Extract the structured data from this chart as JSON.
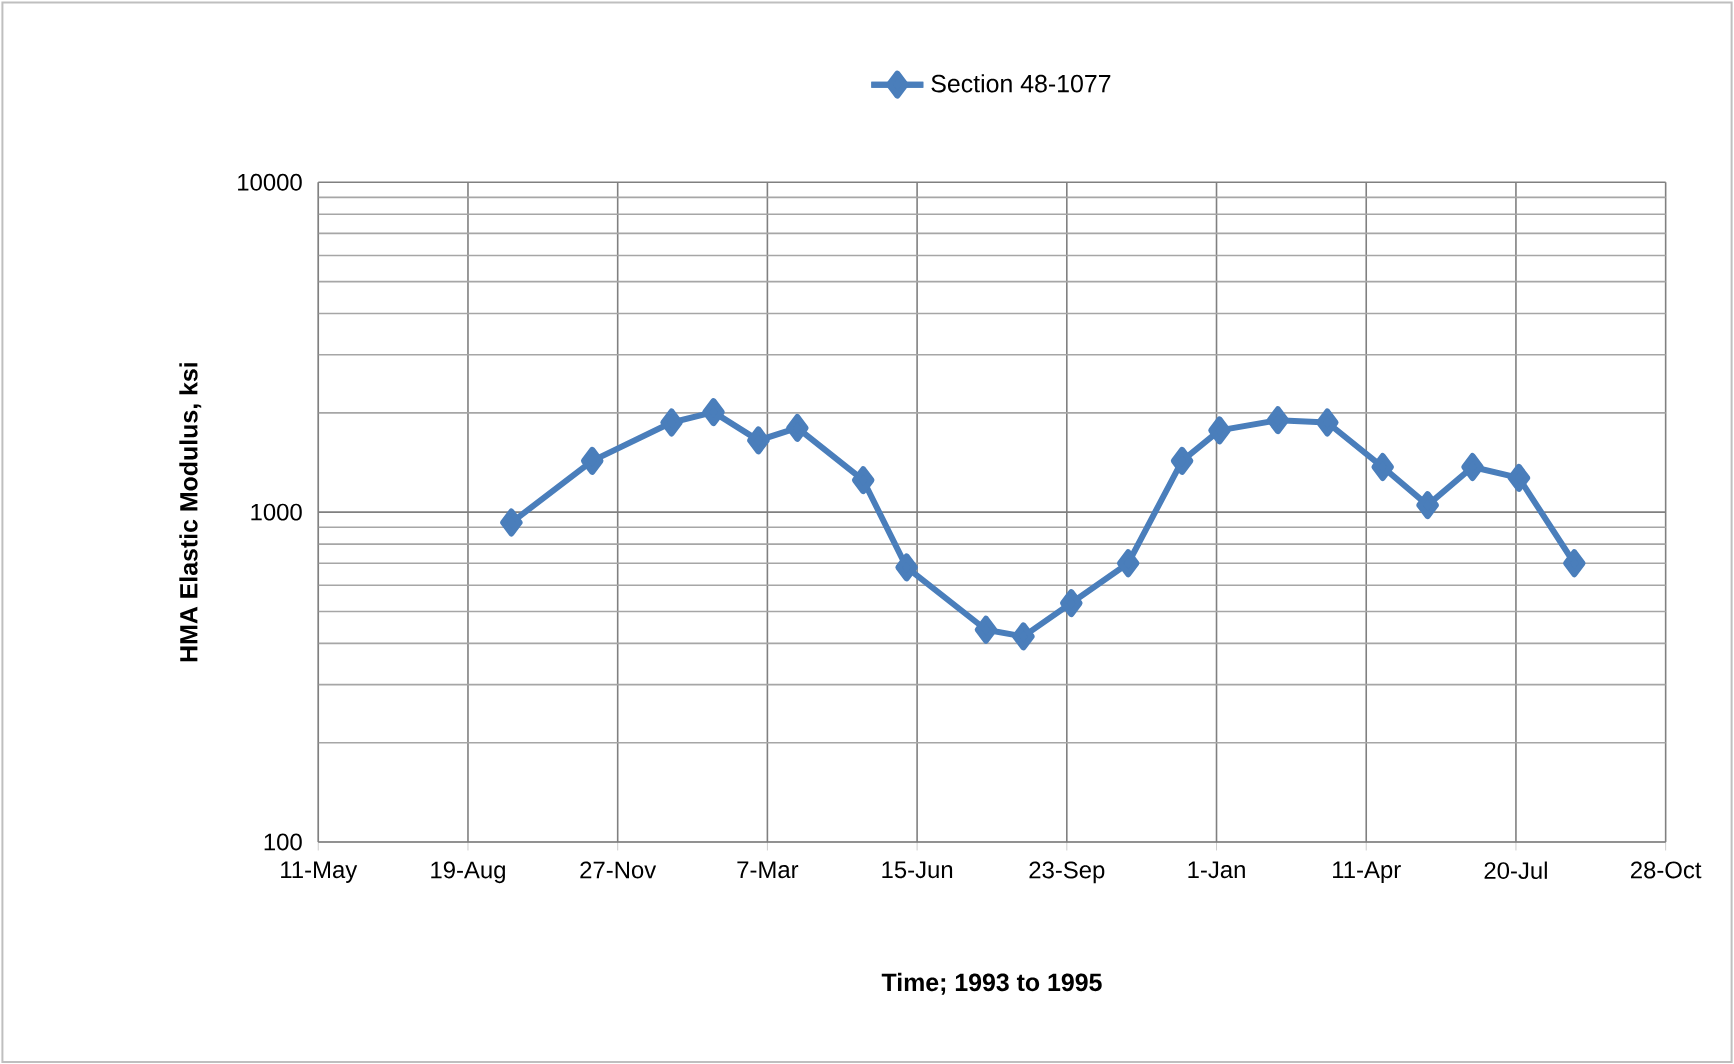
{
  "chart_data": {
    "type": "line",
    "xlabel": "Time; 1993 to 1995",
    "ylabel": "HMA Elastic Modulus, ksi",
    "x": [
      "1993-09-17",
      "1993-11-10",
      "1994-01-02",
      "1994-01-30",
      "1994-03-01",
      "1994-03-27",
      "1994-05-10",
      "1994-06-08",
      "1994-07-31",
      "1994-08-25",
      "1994-09-26",
      "1994-11-03",
      "1994-12-09",
      "1995-01-03",
      "1995-02-11",
      "1995-03-16",
      "1995-04-22",
      "1995-05-22",
      "1995-06-21",
      "1995-07-22",
      "1995-08-28"
    ],
    "series": [
      {
        "name": "Section 48-1077",
        "color": "#4a7ebb",
        "values": [
          930,
          1430,
          1870,
          2010,
          1650,
          1800,
          1250,
          680,
          440,
          420,
          530,
          700,
          1430,
          1770,
          1900,
          1870,
          1370,
          1050,
          1370,
          1270,
          700
        ]
      }
    ],
    "xlim": [
      "1993-05-11",
      "1995-10-28"
    ],
    "xticks": [
      {
        "value": "1993-05-11",
        "label": "11-May"
      },
      {
        "value": "1993-08-19",
        "label": "19-Aug"
      },
      {
        "value": "1993-11-27",
        "label": "27-Nov"
      },
      {
        "value": "1994-03-07",
        "label": "7-Mar"
      },
      {
        "value": "1994-06-15",
        "label": "15-Jun"
      },
      {
        "value": "1994-09-23",
        "label": "23-Sep"
      },
      {
        "value": "1995-01-01",
        "label": "1-Jan"
      },
      {
        "value": "1995-04-11",
        "label": "11-Apr"
      },
      {
        "value": "1995-07-20",
        "label": "20-Jul"
      },
      {
        "value": "1995-10-28",
        "label": "28-Oct"
      }
    ],
    "ylim": [
      100,
      10000
    ],
    "yticks": [
      100,
      1000,
      10000
    ],
    "log": "y",
    "grid": true,
    "legend": "top",
    "marker": "diamond",
    "line_style": "solid"
  }
}
